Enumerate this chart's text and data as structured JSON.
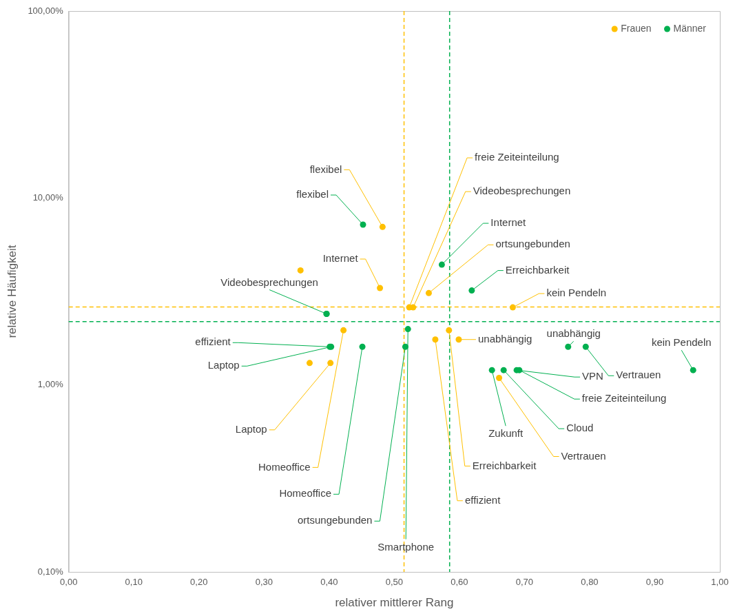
{
  "chart_data": {
    "type": "scatter",
    "xlabel": "relativer mittlerer Rang",
    "ylabel": "relative Häufigkeit",
    "xlim": [
      0,
      1
    ],
    "xticks": [
      {
        "value": 0,
        "label": "0,00"
      },
      {
        "value": 0.1,
        "label": "0,10"
      },
      {
        "value": 0.2,
        "label": "0,20"
      },
      {
        "value": 0.3,
        "label": "0,30"
      },
      {
        "value": 0.4,
        "label": "0,40"
      },
      {
        "value": 0.5,
        "label": "0,50"
      },
      {
        "value": 0.6,
        "label": "0,60"
      },
      {
        "value": 0.7,
        "label": "0,70"
      },
      {
        "value": 0.8,
        "label": "0,80"
      },
      {
        "value": 0.9,
        "label": "0,90"
      },
      {
        "value": 1,
        "label": "1,00"
      }
    ],
    "ylim": [
      0.1,
      100
    ],
    "yticks": [
      {
        "value": 0.1,
        "label": "0,10%"
      },
      {
        "value": 1,
        "label": "1,00%"
      },
      {
        "value": 10,
        "label": "10,00%"
      },
      {
        "value": 100,
        "label": "100,00%"
      }
    ],
    "log": "y",
    "grid": false,
    "legend": "top right",
    "marker": "circle",
    "series": [
      {
        "name": "Frauen",
        "color": "#ffc000",
        "x": [
          0.482,
          0.356,
          0.478,
          0.553,
          0.523,
          0.529,
          0.682,
          0.422,
          0.584,
          0.563,
          0.599,
          0.37,
          0.402,
          0.661
        ],
        "values": [
          7.0,
          4.1,
          3.3,
          3.1,
          2.6,
          2.6,
          2.6,
          1.96,
          1.96,
          1.75,
          1.75,
          1.31,
          1.31,
          1.09
        ],
        "value_labels": [
          "flexibel",
          null,
          "Internet",
          "ortsungebunden",
          "freie Zeiteinteilung",
          "Videobesprechungen",
          "kein Pendeln",
          "Homeoffice",
          "Erreichbarkeit",
          "effizient",
          "unabhängig",
          null,
          "Laptop",
          "Vertrauen"
        ]
      },
      {
        "name": "Männer",
        "color": "#00b050",
        "x": [
          0.452,
          0.573,
          0.619,
          0.396,
          0.396,
          0.521,
          0.401,
          0.403,
          0.451,
          0.517,
          0.767,
          0.794,
          0.65,
          0.668,
          0.688,
          0.692,
          0.959
        ],
        "values": [
          7.2,
          4.4,
          3.2,
          2.4,
          2.4,
          1.99,
          1.6,
          1.6,
          1.6,
          1.6,
          1.6,
          1.6,
          1.2,
          1.2,
          1.2,
          1.2,
          1.2
        ],
        "value_labels": [
          "flexibel",
          "Internet",
          "Erreichbarkeit",
          null,
          "Videobesprechungen",
          "Smartphone",
          "effizient",
          "Laptop",
          "Homeoffice",
          "ortsungebunden",
          "unabhängig",
          "Vertrauen",
          "Zukunft",
          "Cloud",
          "VPN",
          "freie Zeiteinteilung",
          "kein Pendeln"
        ]
      }
    ],
    "ref_lines": [
      {
        "axis": "x",
        "value": 0.515,
        "color": "#ffc000",
        "line_style": "dashed"
      },
      {
        "axis": "y",
        "value": 2.61,
        "color": "#ffc000",
        "line_style": "dashed"
      },
      {
        "axis": "x",
        "value": 0.585,
        "color": "#00b050",
        "line_style": "dashed"
      },
      {
        "axis": "y",
        "value": 2.18,
        "color": "#00b050",
        "line_style": "dashed"
      }
    ]
  }
}
